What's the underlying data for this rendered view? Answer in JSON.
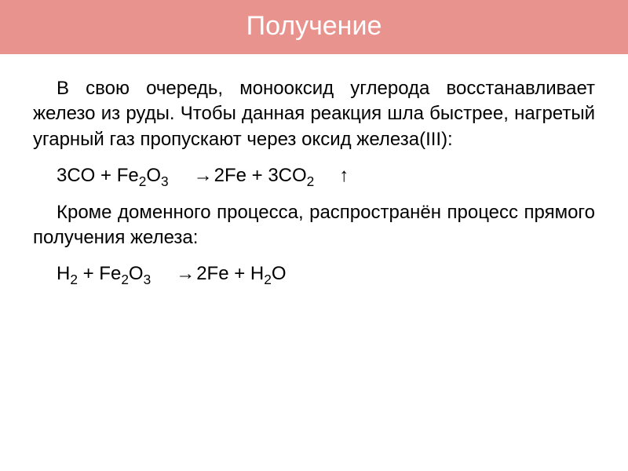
{
  "slide": {
    "title": "Получение",
    "title_bar_color": "#e9938f",
    "title_text_color": "#ffffff",
    "title_fontsize": 34,
    "background_color": "#ffffff",
    "body_text_color": "#000000",
    "body_fontsize": 24,
    "para1": "В свою очередь, монооксид углерода восстанавливает железо из руды. Чтобы данная реакция шла быстрее, нагретый угарный газ пропускают через оксид железа(III):",
    "eq1_prefix": "3CO + Fe",
    "eq1_sub1": "2",
    "eq1_mid1": "O",
    "eq1_sub2": "3",
    "eq1_arrow": " → ",
    "eq1_mid2": "2Fe + 3CO",
    "eq1_sub3": "2",
    "eq1_up": " ↑",
    "para2": "Кроме доменного процесса, распространён процесс прямого получения железа:",
    "eq2_prefix": "H",
    "eq2_sub1": "2",
    "eq2_mid1": " + Fe",
    "eq2_sub2": "2",
    "eq2_mid2": "O",
    "eq2_sub3": "3",
    "eq2_arrow": " → ",
    "eq2_mid3": "2Fe + H",
    "eq2_sub4": "2",
    "eq2_mid4": "O"
  }
}
